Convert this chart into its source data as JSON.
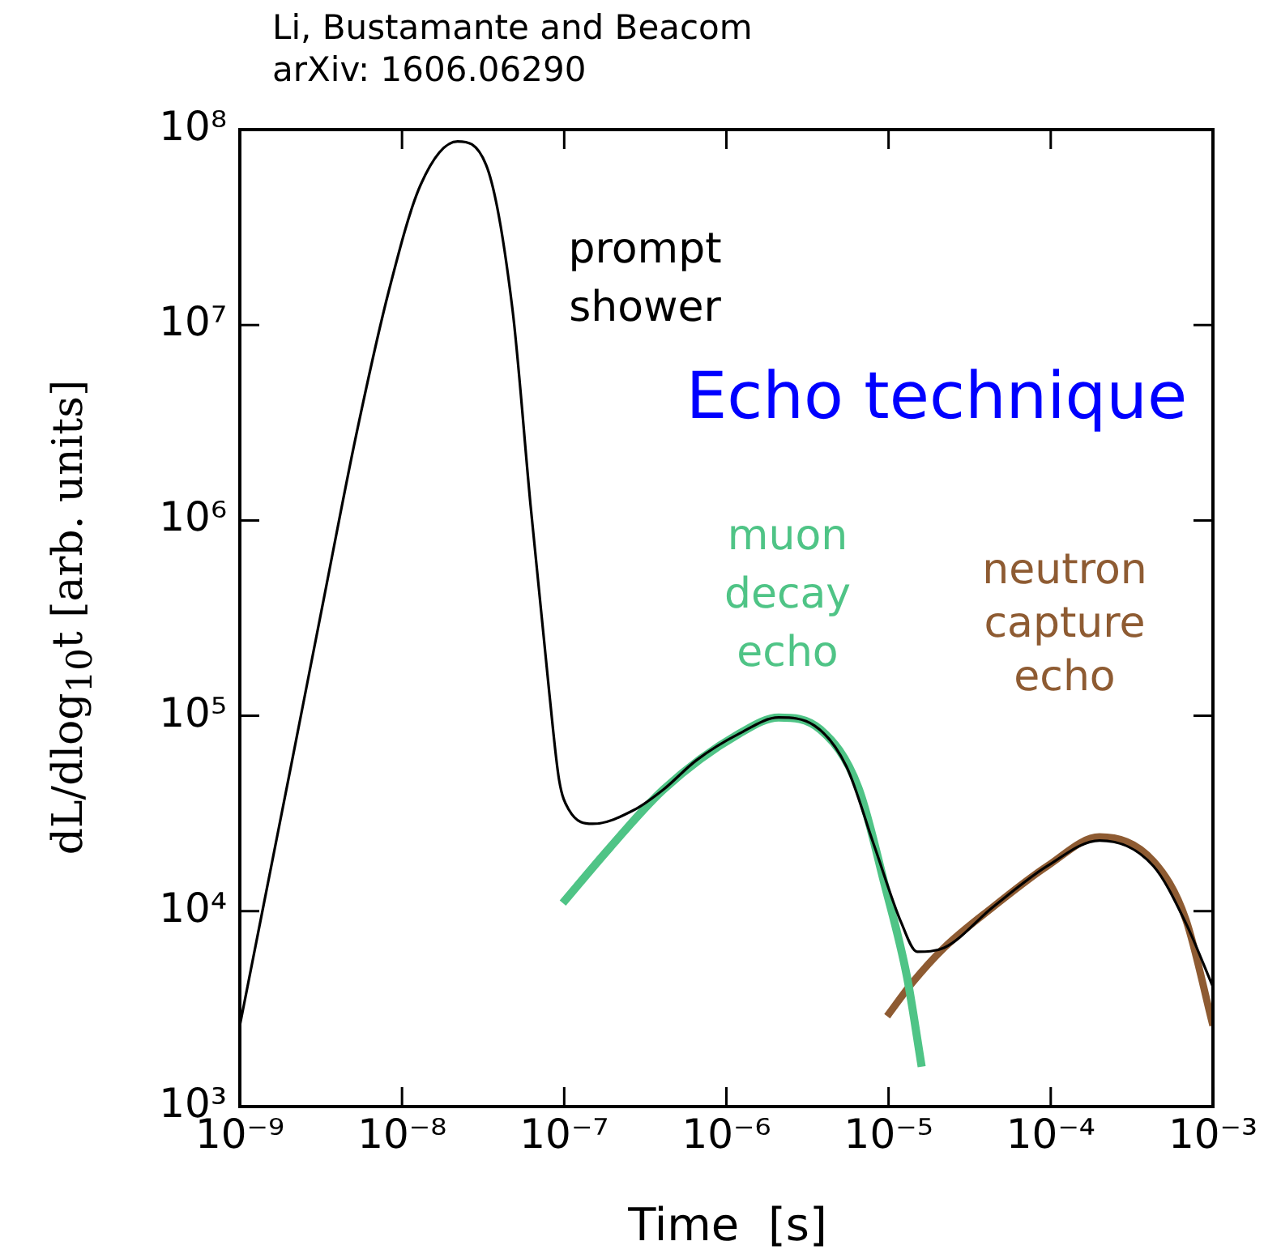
{
  "chart_data": {
    "type": "line",
    "xlabel": "Time  [s]",
    "ylabel": "dL/dlog$_{10}$t [arb. units]",
    "log": "xy",
    "grid": false,
    "legend": false,
    "marker": "none",
    "line_style": "solid",
    "xlim": [
      1e-09,
      0.001
    ],
    "ylim": [
      1000,
      100000000
    ],
    "xticks": [
      {
        "value": 1e-09,
        "label": "10⁻⁹"
      },
      {
        "value": 1e-08,
        "label": "10⁻⁸"
      },
      {
        "value": 1e-07,
        "label": "10⁻⁷"
      },
      {
        "value": 1e-06,
        "label": "10⁻⁶"
      },
      {
        "value": 1e-05,
        "label": "10⁻⁵"
      },
      {
        "value": 0.0001,
        "label": "10⁻⁴"
      },
      {
        "value": 0.001,
        "label": "10⁻³"
      }
    ],
    "yticks": [
      {
        "value": 1000,
        "label": "10³"
      },
      {
        "value": 10000,
        "label": "10⁴"
      },
      {
        "value": 100000,
        "label": "10⁵"
      },
      {
        "value": 1000000,
        "label": "10⁶"
      },
      {
        "value": 10000000,
        "label": "10⁷"
      },
      {
        "value": 100000000,
        "label": "10⁸"
      }
    ],
    "series": [
      {
        "name": "prompt shower",
        "color": "#000000",
        "x": [
          1e-09,
          2.1e-09,
          3.3e-09,
          5.2e-09,
          8.3e-09,
          1.3e-08,
          2.2e-08,
          3.3e-08,
          4.8e-08,
          6.2e-08,
          8.1e-08,
          9.3e-08,
          1.07e-07,
          1.5e-07,
          2.7e-07,
          4.1e-07,
          6.5e-07,
          1.2e-06,
          2.1e-06,
          3.5e-06,
          5.5e-06,
          8.1e-06,
          1.2e-05,
          1.5e-05,
          2.2e-05,
          4.4e-05,
          9.5e-05,
          0.0002,
          0.00043,
          0.00068,
          0.001
        ],
        "values": [
          2600,
          59000,
          400000,
          2700000,
          15000000,
          52000000,
          87000000,
          66000000,
          12000000,
          1200000,
          130000,
          47000,
          33000,
          28000,
          33000,
          42000,
          59000,
          81000,
          98000,
          89000,
          55000,
          22000,
          8700,
          6200,
          6500,
          10500,
          17000,
          23000,
          17000,
          8700,
          4100
        ]
      },
      {
        "name": "muon decay echo",
        "color": "#4fc486",
        "x": [
          9.8e-08,
          1.9e-07,
          4.1e-07,
          1.2e-06,
          2.1e-06,
          3.8e-06,
          6.5e-06,
          9.5e-06,
          1.3e-05,
          1.6e-05
        ],
        "values": [
          11000,
          21000,
          42000,
          81000,
          98000,
          85000,
          43000,
          13500,
          4600,
          1600
        ]
      },
      {
        "name": "neutron capture echo",
        "color": "#8e5b32",
        "x": [
          9.8e-06,
          1.4e-05,
          2.2e-05,
          4.4e-05,
          9.5e-05,
          0.0002,
          0.00043,
          0.00068,
          0.001
        ],
        "values": [
          2900,
          4300,
          6500,
          10500,
          17000,
          24000,
          18000,
          9100,
          2600
        ]
      }
    ],
    "annotations": [
      "Li, Bustamante and Beacom\narXiv: 1606.06290",
      "Echo technique"
    ]
  }
}
